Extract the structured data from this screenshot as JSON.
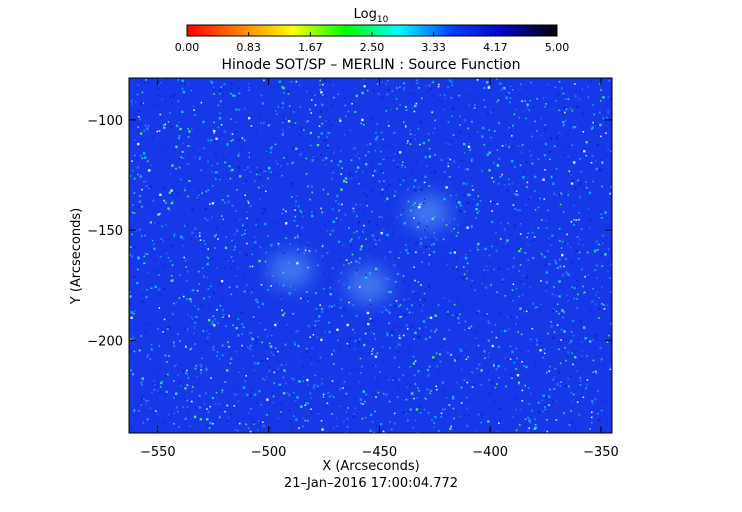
{
  "chart_data": {
    "type": "heatmap",
    "title": "Hinode SOT/SP – MERLIN : Source Function",
    "xlabel": "X (Arcseconds)",
    "ylabel": "Y (Arcseconds)",
    "timestamp": "21–Jan–2016 17:00:04.772",
    "xlim": [
      -563,
      -345
    ],
    "ylim": [
      -242,
      -81
    ],
    "xticks": [
      -550,
      -500,
      -450,
      -400,
      -350
    ],
    "xtick_labels": [
      "−550",
      "−500",
      "−450",
      "−400",
      "−350"
    ],
    "yticks": [
      -100,
      -150,
      -200
    ],
    "ytick_labels": [
      "−100",
      "−150",
      "−200"
    ],
    "colorbar": {
      "label_main": "Log",
      "label_sub": "10",
      "range": [
        0.0,
        5.0
      ],
      "tick_labels": [
        "0.00",
        "0.83",
        "1.67",
        "2.50",
        "3.33",
        "4.17",
        "5.00"
      ],
      "colormap": [
        "#ff0000",
        "#ff8000",
        "#ffff00",
        "#00ff00",
        "#00ffff",
        "#0040ff",
        "#0000c0",
        "#000000"
      ]
    },
    "background_value": 4.2,
    "colors": {
      "field": "#1638e8",
      "speckle_bright": "#00e0ff",
      "speckle_green": "#40ff60"
    },
    "bright_regions": [
      {
        "x": -428,
        "y": -142,
        "value": 3.9
      },
      {
        "x": -490,
        "y": -168,
        "value": 3.95
      },
      {
        "x": -455,
        "y": -175,
        "value": 4.05
      }
    ]
  }
}
